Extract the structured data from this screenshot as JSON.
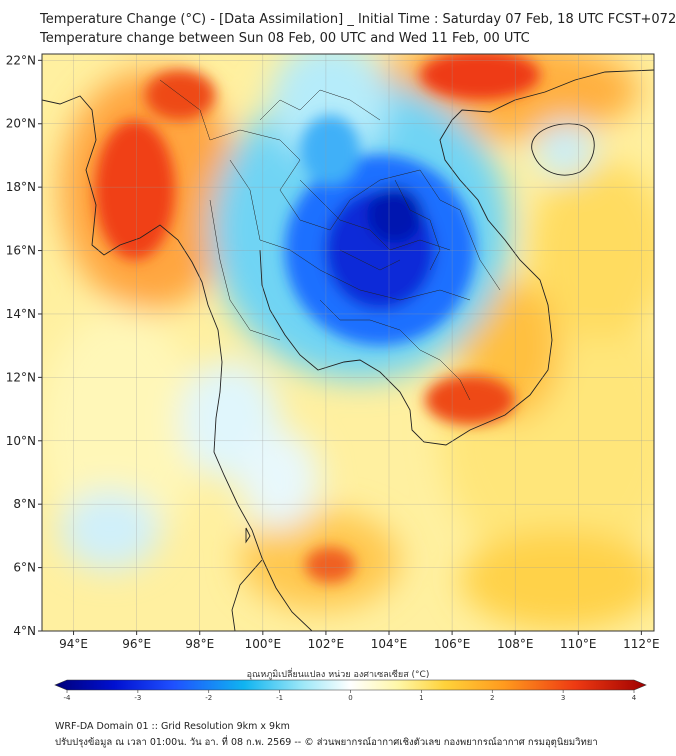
{
  "header": {
    "title_line1": "Temperature Change (°C) - [Data Assimilation] _ Initial Time : Saturday 07 Feb, 18 UTC FCST+072",
    "title_line2": "Temperature change between Sun 08 Feb, 00 UTC and Wed 11 Feb, 00 UTC"
  },
  "map": {
    "lat_labels": [
      "22°N",
      "20°N",
      "18°N",
      "16°N",
      "14°N",
      "12°N",
      "10°N",
      "8°N",
      "6°N",
      "4°N"
    ],
    "lon_labels": [
      "94°E",
      "96°E",
      "98°E",
      "100°E",
      "102°E",
      "104°E",
      "106°E",
      "108°E",
      "110°E",
      "112°E"
    ],
    "lat_values": [
      22,
      20,
      18,
      16,
      14,
      12,
      10,
      8,
      6,
      4
    ],
    "lon_values": [
      94,
      96,
      98,
      100,
      102,
      104,
      106,
      108,
      110,
      112
    ],
    "extent": {
      "lon_min": 93,
      "lon_max": 112.4,
      "lat_min": 4,
      "lat_max": 22.2
    }
  },
  "colorbar": {
    "label": "อุณหภูมิเปลี่ยนแปลง หน่วย องศาเซลเซียส (°C)",
    "ticks": [
      "-4",
      "-3",
      "-2",
      "-1",
      "0",
      "1",
      "2",
      "3",
      "4"
    ],
    "min": -4,
    "max": 4,
    "colors": [
      "#00007a",
      "#0010d0",
      "#1f50ff",
      "#10b4f0",
      "#9ee8f8",
      "#ffffff",
      "#fff7a8",
      "#ffd23a",
      "#ff9a1e",
      "#ee3a12",
      "#a00000"
    ]
  },
  "footer": {
    "line1": "WRF-DA Domain 01 :: Grid Resolution 9km x 9km",
    "line2": "ปรับปรุงข้อมูล ณ เวลา 01:00น. วัน อา. ที่ 08 ก.พ. 2569 -- © ส่วนพยากรณ์อากาศเชิงตัวเลข กองพยากรณ์อากาศ กรมอุตุนิยมวิทยา"
  }
}
